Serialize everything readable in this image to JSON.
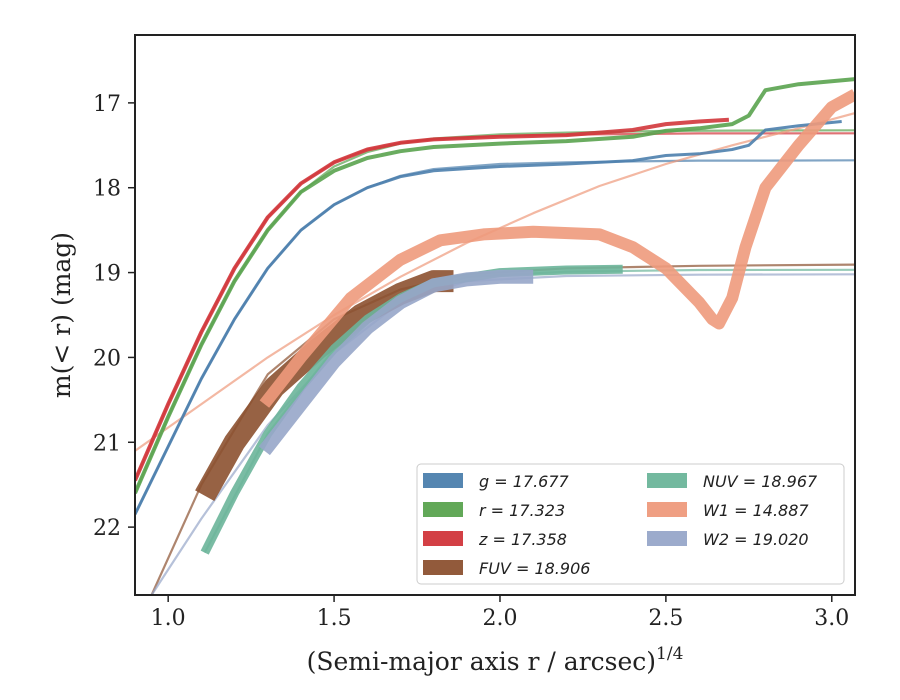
{
  "chart_data": {
    "type": "line",
    "xlabel": "(Semi-major axis r / arcsec)",
    "xlabel_exponent": "1/4",
    "ylabel": "m(< r) (mag)",
    "xlim": [
      0.9,
      3.07
    ],
    "ylim": [
      22.8,
      16.2
    ],
    "y_inverted": true,
    "x_ticks": [
      "1.0",
      "1.5",
      "2.0",
      "2.5",
      "3.0"
    ],
    "y_ticks": [
      "17",
      "18",
      "19",
      "20",
      "21",
      "22"
    ],
    "grid": false,
    "legend_position": "lower-right",
    "series": [
      {
        "name": "g = 17.677",
        "color": "#4c7fad",
        "observed": {
          "x": [
            0.9,
            1.0,
            1.1,
            1.2,
            1.3,
            1.4,
            1.5,
            1.6,
            1.7,
            1.8,
            2.0,
            2.2,
            2.4,
            2.5,
            2.6,
            2.7,
            2.75,
            2.8,
            2.9,
            3.03
          ],
          "y": [
            21.85,
            21.05,
            20.25,
            19.55,
            18.95,
            18.5,
            18.2,
            18.0,
            17.87,
            17.8,
            17.75,
            17.72,
            17.68,
            17.62,
            17.6,
            17.55,
            17.5,
            17.32,
            17.27,
            17.22
          ],
          "width": 3
        },
        "model": {
          "x": [
            0.9,
            1.0,
            1.1,
            1.2,
            1.3,
            1.4,
            1.5,
            1.6,
            1.7,
            1.8,
            2.0,
            2.2,
            2.4,
            2.6,
            2.8,
            3.07
          ],
          "y": [
            21.85,
            21.05,
            20.25,
            19.55,
            18.95,
            18.5,
            18.2,
            18.0,
            17.86,
            17.78,
            17.72,
            17.7,
            17.69,
            17.68,
            17.68,
            17.677
          ]
        }
      },
      {
        "name": "r = 17.323",
        "color": "#5aa34f",
        "observed": {
          "x": [
            0.9,
            1.0,
            1.1,
            1.2,
            1.3,
            1.4,
            1.5,
            1.6,
            1.7,
            1.8,
            2.0,
            2.2,
            2.4,
            2.5,
            2.6,
            2.7,
            2.75,
            2.8,
            2.9,
            3.07
          ],
          "y": [
            21.6,
            20.7,
            19.85,
            19.1,
            18.5,
            18.05,
            17.8,
            17.65,
            17.57,
            17.52,
            17.48,
            17.45,
            17.4,
            17.33,
            17.3,
            17.25,
            17.15,
            16.85,
            16.78,
            16.72
          ],
          "width": 4
        },
        "model": {
          "x": [
            0.9,
            1.0,
            1.1,
            1.2,
            1.3,
            1.4,
            1.5,
            1.6,
            1.7,
            1.8,
            2.0,
            2.2,
            2.5,
            2.8,
            3.07
          ],
          "y": [
            21.6,
            20.7,
            19.85,
            19.1,
            18.5,
            18.05,
            17.75,
            17.58,
            17.48,
            17.42,
            17.37,
            17.35,
            17.33,
            17.325,
            17.323
          ]
        }
      },
      {
        "name": "z = 17.358",
        "color": "#d1363b",
        "observed": {
          "x": [
            0.9,
            1.0,
            1.1,
            1.2,
            1.3,
            1.4,
            1.5,
            1.6,
            1.7,
            1.8,
            2.0,
            2.2,
            2.3,
            2.4,
            2.5,
            2.6,
            2.69
          ],
          "y": [
            21.45,
            20.55,
            19.7,
            18.95,
            18.35,
            17.95,
            17.7,
            17.55,
            17.47,
            17.43,
            17.4,
            17.38,
            17.35,
            17.32,
            17.25,
            17.22,
            17.2
          ],
          "width": 4
        },
        "model": {
          "x": [
            0.9,
            1.0,
            1.1,
            1.2,
            1.3,
            1.4,
            1.5,
            1.6,
            1.7,
            1.8,
            2.0,
            2.3,
            2.6,
            3.07
          ],
          "y": [
            21.45,
            20.55,
            19.7,
            18.95,
            18.35,
            17.95,
            17.7,
            17.55,
            17.47,
            17.43,
            17.39,
            17.37,
            17.36,
            17.358
          ]
        }
      },
      {
        "name": "FUV = 18.906",
        "color": "#8c5130",
        "observed": {
          "x": [
            1.11,
            1.2,
            1.32,
            1.45,
            1.58,
            1.7,
            1.8,
            1.86
          ],
          "y": [
            21.63,
            21.0,
            20.35,
            19.9,
            19.5,
            19.25,
            19.1,
            19.1
          ],
          "width": 22
        },
        "model": {
          "x": [
            0.95,
            1.1,
            1.3,
            1.5,
            1.7,
            1.9,
            2.2,
            2.6,
            3.07
          ],
          "y": [
            22.8,
            21.5,
            20.2,
            19.55,
            19.2,
            19.02,
            18.95,
            18.92,
            18.906
          ]
        }
      },
      {
        "name": "NUV = 18.967",
        "color": "#6bb59a",
        "observed": {
          "x": [
            1.11,
            1.2,
            1.3,
            1.4,
            1.5,
            1.6,
            1.7,
            1.8,
            2.0,
            2.2,
            2.37
          ],
          "y": [
            22.3,
            21.6,
            20.9,
            20.35,
            19.9,
            19.55,
            19.3,
            19.12,
            19.0,
            18.97,
            18.96
          ],
          "width": 9
        },
        "model": {
          "x": [
            1.11,
            1.3,
            1.5,
            1.7,
            1.9,
            2.2,
            2.6,
            3.07
          ],
          "y": [
            22.3,
            20.9,
            19.9,
            19.3,
            19.05,
            18.99,
            18.97,
            18.967
          ]
        }
      },
      {
        "name": "W1 = 14.887",
        "color": "#ee9a7c",
        "observed": {
          "x": [
            1.29,
            1.4,
            1.55,
            1.7,
            1.82,
            1.95,
            2.1,
            2.3,
            2.4,
            2.5,
            2.55,
            2.6,
            2.64,
            2.66,
            2.7,
            2.74,
            2.8,
            2.9,
            3.0,
            3.07
          ],
          "y": [
            20.55,
            20.0,
            19.3,
            18.85,
            18.62,
            18.55,
            18.52,
            18.55,
            18.7,
            18.95,
            19.15,
            19.35,
            19.55,
            19.6,
            19.3,
            18.7,
            18.0,
            17.5,
            17.05,
            16.9
          ],
          "width": 12
        },
        "model": {
          "x": [
            0.9,
            1.1,
            1.3,
            1.5,
            1.7,
            1.9,
            2.1,
            2.3,
            2.5,
            2.7,
            2.9,
            3.07
          ],
          "y": [
            21.1,
            20.55,
            20.0,
            19.5,
            19.05,
            18.65,
            18.3,
            17.98,
            17.72,
            17.5,
            17.3,
            17.12
          ]
        }
      },
      {
        "name": "W2 = 19.020",
        "color": "#97a6c9",
        "observed": {
          "x": [
            1.29,
            1.4,
            1.5,
            1.6,
            1.7,
            1.8,
            1.9,
            2.0,
            2.1
          ],
          "y": [
            21.1,
            20.55,
            20.05,
            19.65,
            19.35,
            19.15,
            19.08,
            19.05,
            19.05
          ],
          "width": 14
        },
        "model": {
          "x": [
            0.95,
            1.1,
            1.3,
            1.5,
            1.7,
            1.9,
            2.2,
            2.6,
            3.07
          ],
          "y": [
            22.8,
            21.9,
            20.8,
            19.95,
            19.35,
            19.1,
            19.04,
            19.025,
            19.02
          ]
        }
      }
    ]
  }
}
